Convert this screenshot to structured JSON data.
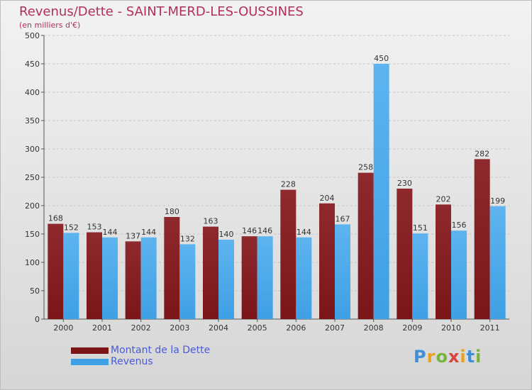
{
  "header": {
    "title": "Revenus/Dette - SAINT-MERD-LES-OUSSINES",
    "subtitle": "(en milliers d'€)"
  },
  "chart_data": {
    "type": "bar",
    "categories": [
      "2000",
      "2001",
      "2002",
      "2003",
      "2004",
      "2005",
      "2006",
      "2007",
      "2008",
      "2009",
      "2010",
      "2011"
    ],
    "series": [
      {
        "name": "Montant de la Dette",
        "values": [
          168,
          153,
          137,
          180,
          163,
          146,
          228,
          204,
          258,
          230,
          202,
          282
        ],
        "color": "#7a1518"
      },
      {
        "name": "Revenus",
        "values": [
          152,
          144,
          144,
          132,
          140,
          146,
          144,
          167,
          450,
          151,
          156,
          199
        ],
        "color": "#3fa0e4"
      }
    ],
    "ylim": [
      0,
      500
    ],
    "yticks": [
      0,
      50,
      100,
      150,
      200,
      250,
      300,
      350,
      400,
      450,
      500
    ],
    "grid": true,
    "legend_position": "bottom-left"
  },
  "logo": {
    "letters": [
      "P",
      "r",
      "o",
      "x",
      "i",
      "t",
      "i"
    ],
    "colors": [
      "#3c8fd8",
      "#e6a21a",
      "#79b53b",
      "#d9433b",
      "#e6a21a",
      "#3c8fd8",
      "#79b53b"
    ]
  }
}
